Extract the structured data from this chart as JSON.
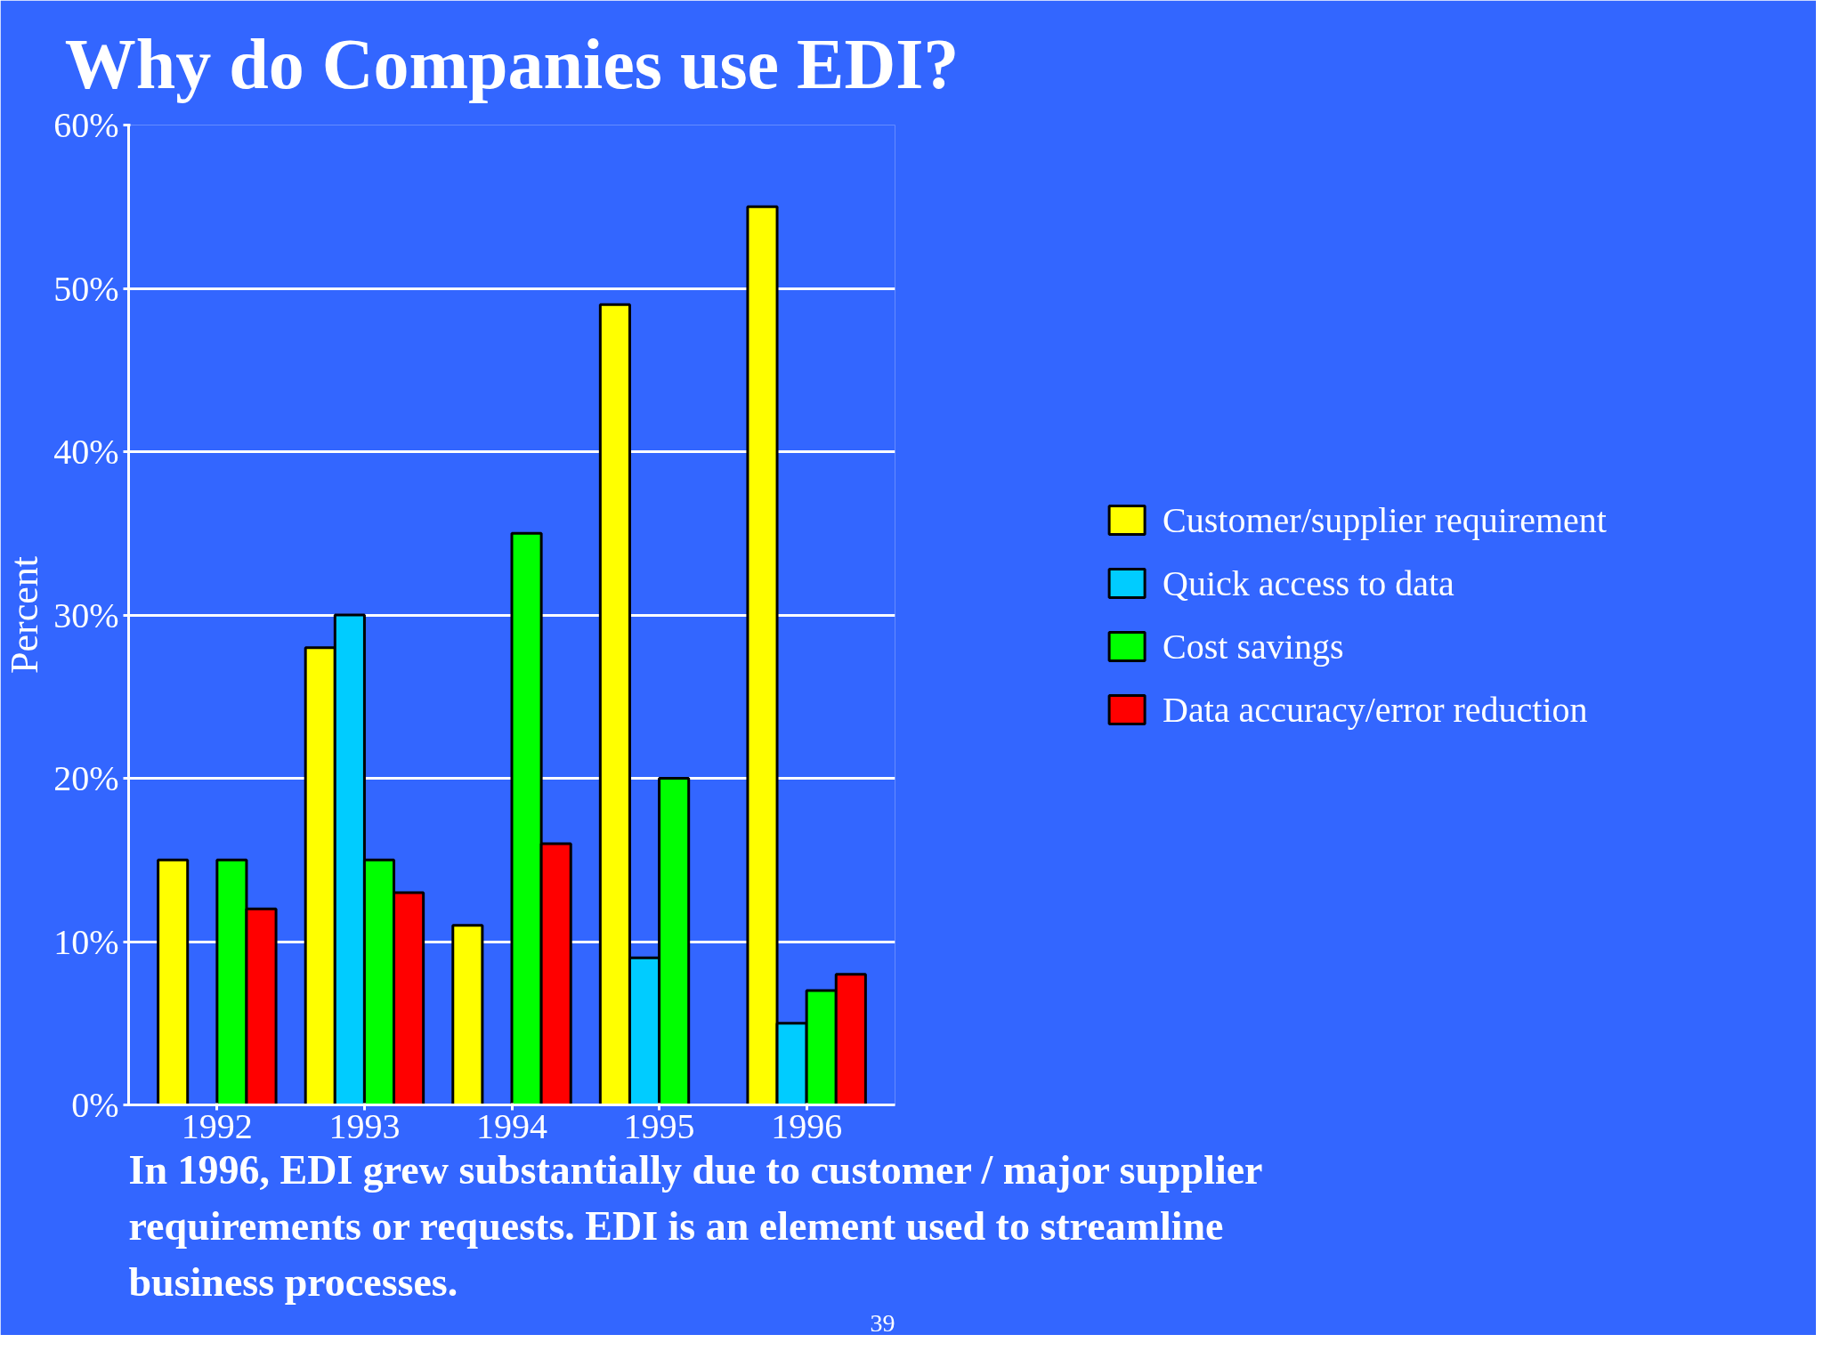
{
  "chart_data": {
    "type": "bar",
    "title": "Why do Companies use EDI?",
    "ylabel": "Percent",
    "categories": [
      "1992",
      "1993",
      "1994",
      "1995",
      "1996"
    ],
    "series": [
      {
        "name": "Customer/supplier requirement",
        "color": "#ffff00",
        "values": [
          15,
          28,
          11,
          49,
          55
        ]
      },
      {
        "name": "Quick access to data",
        "color": "#00ccff",
        "values": [
          null,
          30,
          null,
          9,
          5
        ]
      },
      {
        "name": "Cost savings",
        "color": "#00ff00",
        "values": [
          15,
          15,
          35,
          20,
          7
        ]
      },
      {
        "name": "Data accuracy/error reduction",
        "color": "#ff0000",
        "values": [
          12,
          13,
          16,
          null,
          8
        ]
      }
    ],
    "ylim": [
      0,
      60
    ],
    "yticks": [
      {
        "value": 0,
        "label": "0%"
      },
      {
        "value": 10,
        "label": "10%"
      },
      {
        "value": 20,
        "label": "20%"
      },
      {
        "value": 30,
        "label": "30%"
      },
      {
        "value": 40,
        "label": "40%"
      },
      {
        "value": 50,
        "label": "50%"
      },
      {
        "value": 60,
        "label": "60%"
      }
    ],
    "grid": "y",
    "legend": "right",
    "annotations": [
      "In 1996, EDI grew substantially due to customer / major supplier requirements or requests.  EDI is an element used to streamline business processes.",
      "39"
    ]
  }
}
